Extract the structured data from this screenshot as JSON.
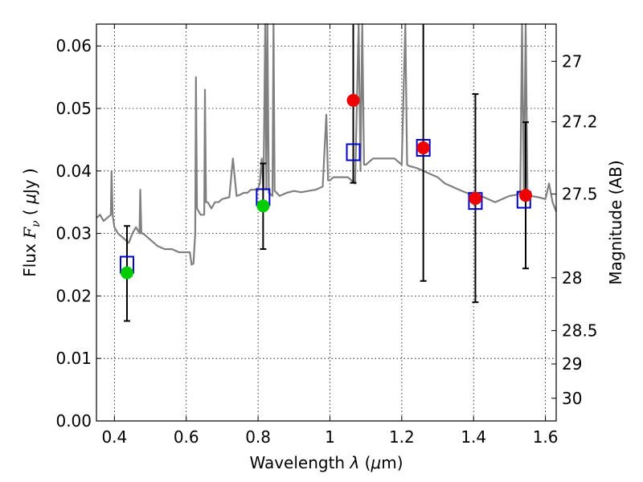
{
  "chart_data": {
    "type": "scatter",
    "xlabel_main": "Wavelength ",
    "xlabel_lambda": "λ",
    "xlabel_unit": " (",
    "xlabel_mu": "μ",
    "xlabel_end": "m)",
    "ylabel_main": "Flux ",
    "ylabel_F": "F",
    "ylabel_nu": "ν",
    "ylabel_unit_open": " ( ",
    "ylabel_mu": "μ",
    "ylabel_unit_end": "Jy )",
    "y2label": "Magnitude (AB)",
    "xlim": [
      0.35,
      1.63
    ],
    "ylim": [
      0.0,
      0.0635
    ],
    "grid": true,
    "x_ticks": [
      {
        "value": 0.4,
        "label": "0.4"
      },
      {
        "value": 0.6,
        "label": "0.6"
      },
      {
        "value": 0.8,
        "label": "0.8"
      },
      {
        "value": 1.0,
        "label": "1"
      },
      {
        "value": 1.2,
        "label": "1.2"
      },
      {
        "value": 1.4,
        "label": "1.4"
      },
      {
        "value": 1.6,
        "label": "1.6"
      }
    ],
    "y_ticks": [
      {
        "value": 0.0,
        "label": "0.00"
      },
      {
        "value": 0.01,
        "label": "0.01"
      },
      {
        "value": 0.02,
        "label": "0.02"
      },
      {
        "value": 0.03,
        "label": "0.03"
      },
      {
        "value": 0.04,
        "label": "0.04"
      },
      {
        "value": 0.05,
        "label": "0.05"
      },
      {
        "value": 0.06,
        "label": "0.06"
      }
    ],
    "y2_ticks": [
      {
        "mag": 27,
        "label": "27"
      },
      {
        "mag": 27.2,
        "label": "27.2"
      },
      {
        "mag": 27.5,
        "label": "27.5"
      },
      {
        "mag": 28,
        "label": "28"
      },
      {
        "mag": 28.5,
        "label": "28.5"
      },
      {
        "mag": 29,
        "label": "29"
      },
      {
        "mag": 30,
        "label": "30"
      }
    ],
    "model_spectrum": {
      "color": "#808080",
      "x": [
        0.35,
        0.36,
        0.37,
        0.38,
        0.39,
        0.392,
        0.395,
        0.4,
        0.41,
        0.42,
        0.43,
        0.44,
        0.45,
        0.46,
        0.47,
        0.472,
        0.475,
        0.48,
        0.5,
        0.52,
        0.54,
        0.56,
        0.58,
        0.6,
        0.61,
        0.615,
        0.62,
        0.625,
        0.627,
        0.63,
        0.64,
        0.65,
        0.652,
        0.655,
        0.66,
        0.67,
        0.68,
        0.69,
        0.7,
        0.72,
        0.73,
        0.74,
        0.75,
        0.76,
        0.77,
        0.78,
        0.79,
        0.8,
        0.805,
        0.81,
        0.815,
        0.82,
        0.823,
        0.826,
        0.83,
        0.84,
        0.843,
        0.846,
        0.85,
        0.86,
        0.88,
        0.9,
        0.92,
        0.94,
        0.96,
        0.98,
        0.99,
        0.995,
        1.0,
        1.01,
        1.03,
        1.05,
        1.07,
        1.08,
        1.085,
        1.09,
        1.095,
        1.1,
        1.12,
        1.15,
        1.18,
        1.2,
        1.21,
        1.215,
        1.22,
        1.24,
        1.26,
        1.28,
        1.3,
        1.32,
        1.34,
        1.36,
        1.38,
        1.4,
        1.42,
        1.44,
        1.46,
        1.48,
        1.5,
        1.52,
        1.53,
        1.535,
        1.54,
        1.545,
        1.55,
        1.56,
        1.58,
        1.6,
        1.61,
        1.62,
        1.63
      ],
      "y": [
        0.0325,
        0.033,
        0.032,
        0.0325,
        0.033,
        0.04,
        0.033,
        0.031,
        0.03,
        0.0295,
        0.029,
        0.0285,
        0.03,
        0.031,
        0.03,
        0.037,
        0.03,
        0.03,
        0.029,
        0.028,
        0.0275,
        0.0275,
        0.027,
        0.027,
        0.027,
        0.025,
        0.0252,
        0.03,
        0.055,
        0.034,
        0.033,
        0.033,
        0.053,
        0.035,
        0.035,
        0.034,
        0.035,
        0.035,
        0.0355,
        0.0358,
        0.042,
        0.036,
        0.0362,
        0.0365,
        0.0365,
        0.037,
        0.037,
        0.0372,
        0.038,
        0.042,
        0.037,
        0.064,
        0.037,
        0.064,
        0.0365,
        0.036,
        0.064,
        0.0368,
        0.0366,
        0.036,
        0.0365,
        0.0368,
        0.0366,
        0.0368,
        0.037,
        0.0375,
        0.049,
        0.0385,
        0.0385,
        0.039,
        0.039,
        0.039,
        0.038,
        0.064,
        0.04,
        0.064,
        0.041,
        0.041,
        0.042,
        0.042,
        0.042,
        0.041,
        0.064,
        0.041,
        0.0408,
        0.0405,
        0.04,
        0.0395,
        0.039,
        0.038,
        0.0375,
        0.037,
        0.0365,
        0.0362,
        0.036,
        0.0355,
        0.035,
        0.0355,
        0.036,
        0.0362,
        0.0365,
        0.064,
        0.036,
        0.064,
        0.0365,
        0.036,
        0.0358,
        0.0355,
        0.038,
        0.035,
        0.0335
      ]
    },
    "model_photometry": {
      "marker": "square",
      "color": "#0000cc",
      "points": [
        {
          "x": 0.435,
          "y": 0.025
        },
        {
          "x": 0.814,
          "y": 0.0358
        },
        {
          "x": 1.065,
          "y": 0.043
        },
        {
          "x": 1.26,
          "y": 0.0437
        },
        {
          "x": 1.405,
          "y": 0.0352
        },
        {
          "x": 1.54,
          "y": 0.0354
        }
      ]
    },
    "detections": {
      "marker": "circle",
      "color": "#00cc00",
      "points": [
        {
          "x": 0.435,
          "y": 0.0237,
          "err_low": 0.016,
          "err_high": 0.0312
        },
        {
          "x": 0.814,
          "y": 0.0344,
          "err_low": 0.0275,
          "err_high": 0.0412
        }
      ]
    },
    "measurements": {
      "marker": "circle",
      "color": "#ee0000",
      "points": [
        {
          "x": 1.065,
          "y": 0.0513,
          "err_low": 0.0381,
          "err_high": 0.064
        },
        {
          "x": 1.26,
          "y": 0.0437,
          "err_low": 0.0224,
          "err_high": 0.064
        },
        {
          "x": 1.405,
          "y": 0.0356,
          "err_low": 0.019,
          "err_high": 0.0523
        },
        {
          "x": 1.545,
          "y": 0.0361,
          "err_low": 0.0244,
          "err_high": 0.0478
        }
      ]
    }
  }
}
